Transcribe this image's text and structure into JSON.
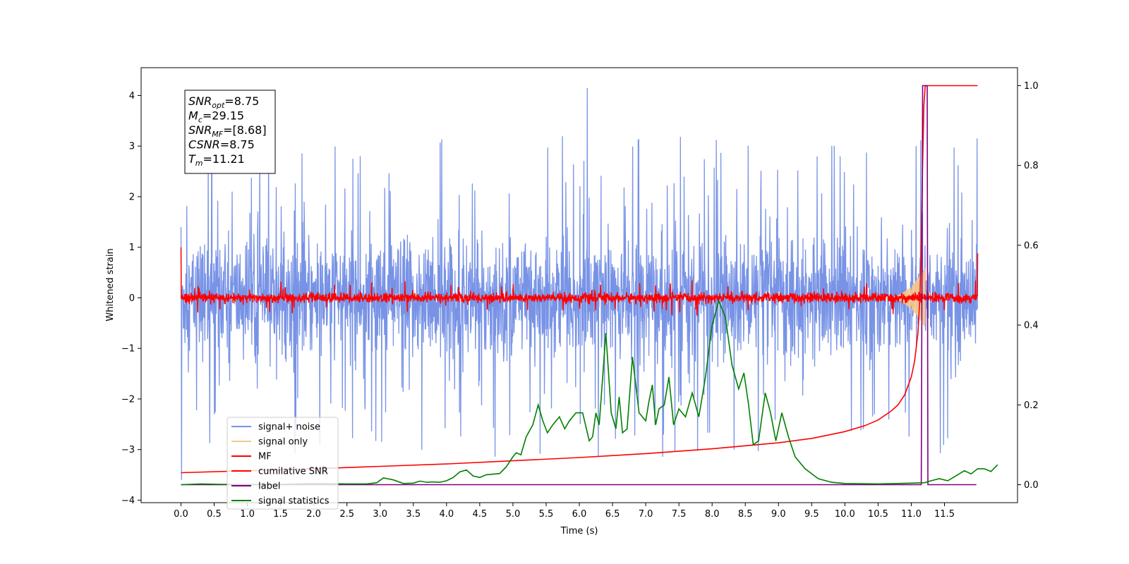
{
  "chart_data": {
    "type": "line",
    "xlabel": "Time (s)",
    "ylabel": "Whitened strain",
    "ylabel_right": "",
    "xlim": [
      -0.6,
      12.6
    ],
    "ylim": [
      -4.05,
      4.55
    ],
    "ylim_right": [
      -0.045,
      1.045
    ],
    "x_ticks": [
      "0.0",
      "0.5",
      "1.0",
      "1.5",
      "2.0",
      "2.5",
      "3.0",
      "3.5",
      "4.0",
      "4.5",
      "5.0",
      "5.5",
      "6.0",
      "6.5",
      "7.0",
      "7.5",
      "8.0",
      "8.5",
      "9.0",
      "9.5",
      "10.0",
      "10.5",
      "11.0",
      "11.5"
    ],
    "y_ticks": [
      "−4",
      "−3",
      "−2",
      "−1",
      "0",
      "1",
      "2",
      "3",
      "4"
    ],
    "y_ticks_right": [
      "0.0",
      "0.2",
      "0.4",
      "0.6",
      "0.8",
      "1.0"
    ],
    "grid": false,
    "legend_position": "lower-left",
    "info_box": {
      "lines": [
        {
          "base": "SNR",
          "sub": "opt",
          "value": "=8.75"
        },
        {
          "base": "M",
          "sub": "c",
          "value": "=29.15"
        },
        {
          "base": "SNR",
          "sub": "MF",
          "value": "=[8.68]"
        },
        {
          "base": "CSNR",
          "sub": "",
          "value": "=8.75"
        },
        {
          "base": "T",
          "sub": "m",
          "value": "=11.21"
        }
      ]
    },
    "series": [
      {
        "name": "signal+ noise",
        "color": "#7893e6",
        "axis": "left",
        "description_envelope": {
          "x_start": 0.0,
          "x_end": 12.0,
          "spread": 0.75,
          "peak_max": 4.15,
          "peak_min": -3.62
        }
      },
      {
        "name": "signal only",
        "color": "#f5c98a",
        "axis": "left",
        "chirp": {
          "x_start": 10.6,
          "x_end": 11.21,
          "max_amp": 0.6
        }
      },
      {
        "name": "MF",
        "color": "#ff0000",
        "axis": "left",
        "noise_band": {
          "x_start": 0.0,
          "x_end": 12.0,
          "spread": 0.09,
          "start_value": 1.0,
          "end_value": 0.88
        }
      },
      {
        "name": "cumilative SNR",
        "color": "#ff0000",
        "axis": "right",
        "points": [
          [
            0.0,
            0.03
          ],
          [
            1.0,
            0.035
          ],
          [
            2.0,
            0.04
          ],
          [
            3.0,
            0.046
          ],
          [
            4.0,
            0.052
          ],
          [
            5.0,
            0.06
          ],
          [
            6.0,
            0.068
          ],
          [
            7.0,
            0.078
          ],
          [
            8.0,
            0.09
          ],
          [
            9.0,
            0.105
          ],
          [
            9.5,
            0.116
          ],
          [
            10.0,
            0.133
          ],
          [
            10.3,
            0.148
          ],
          [
            10.5,
            0.162
          ],
          [
            10.7,
            0.185
          ],
          [
            10.8,
            0.2
          ],
          [
            10.9,
            0.225
          ],
          [
            11.0,
            0.27
          ],
          [
            11.05,
            0.31
          ],
          [
            11.1,
            0.38
          ],
          [
            11.13,
            0.47
          ],
          [
            11.15,
            0.6
          ],
          [
            11.17,
            0.8
          ],
          [
            11.19,
            0.95
          ],
          [
            11.21,
            1.0
          ],
          [
            12.0,
            1.0
          ]
        ]
      },
      {
        "name": "label",
        "color": "#800080",
        "axis": "right",
        "points": [
          [
            0.0,
            0.0
          ],
          [
            11.15,
            0.0
          ],
          [
            11.17,
            1.0
          ],
          [
            11.24,
            1.0
          ],
          [
            11.25,
            0.0
          ],
          [
            11.98,
            0.0
          ]
        ]
      },
      {
        "name": "signal statistics",
        "color": "#008000",
        "axis": "right",
        "points": [
          [
            0.0,
            0.0
          ],
          [
            0.3,
            0.002
          ],
          [
            0.6,
            0.001
          ],
          [
            1.0,
            0.001
          ],
          [
            1.5,
            0.001
          ],
          [
            2.0,
            0.003
          ],
          [
            2.5,
            0.002
          ],
          [
            2.8,
            0.002
          ],
          [
            2.95,
            0.005
          ],
          [
            3.05,
            0.017
          ],
          [
            3.2,
            0.012
          ],
          [
            3.35,
            0.003
          ],
          [
            3.5,
            0.004
          ],
          [
            3.6,
            0.009
          ],
          [
            3.7,
            0.006
          ],
          [
            3.8,
            0.007
          ],
          [
            3.9,
            0.006
          ],
          [
            4.0,
            0.01
          ],
          [
            4.1,
            0.018
          ],
          [
            4.2,
            0.032
          ],
          [
            4.3,
            0.037
          ],
          [
            4.4,
            0.022
          ],
          [
            4.5,
            0.018
          ],
          [
            4.6,
            0.025
          ],
          [
            4.8,
            0.028
          ],
          [
            4.9,
            0.045
          ],
          [
            5.0,
            0.07
          ],
          [
            5.05,
            0.08
          ],
          [
            5.12,
            0.075
          ],
          [
            5.2,
            0.12
          ],
          [
            5.3,
            0.15
          ],
          [
            5.38,
            0.2
          ],
          [
            5.45,
            0.16
          ],
          [
            5.52,
            0.13
          ],
          [
            5.6,
            0.15
          ],
          [
            5.7,
            0.17
          ],
          [
            5.78,
            0.14
          ],
          [
            5.85,
            0.16
          ],
          [
            5.95,
            0.18
          ],
          [
            6.05,
            0.18
          ],
          [
            6.15,
            0.11
          ],
          [
            6.2,
            0.12
          ],
          [
            6.25,
            0.18
          ],
          [
            6.3,
            0.15
          ],
          [
            6.4,
            0.38
          ],
          [
            6.48,
            0.18
          ],
          [
            6.55,
            0.14
          ],
          [
            6.6,
            0.22
          ],
          [
            6.65,
            0.13
          ],
          [
            6.72,
            0.14
          ],
          [
            6.8,
            0.32
          ],
          [
            6.9,
            0.18
          ],
          [
            7.0,
            0.16
          ],
          [
            7.05,
            0.21
          ],
          [
            7.1,
            0.25
          ],
          [
            7.15,
            0.15
          ],
          [
            7.2,
            0.19
          ],
          [
            7.28,
            0.2
          ],
          [
            7.35,
            0.27
          ],
          [
            7.42,
            0.15
          ],
          [
            7.5,
            0.19
          ],
          [
            7.6,
            0.17
          ],
          [
            7.7,
            0.23
          ],
          [
            7.8,
            0.17
          ],
          [
            7.9,
            0.27
          ],
          [
            8.0,
            0.4
          ],
          [
            8.1,
            0.46
          ],
          [
            8.2,
            0.42
          ],
          [
            8.3,
            0.3
          ],
          [
            8.4,
            0.24
          ],
          [
            8.48,
            0.28
          ],
          [
            8.55,
            0.2
          ],
          [
            8.62,
            0.1
          ],
          [
            8.7,
            0.11
          ],
          [
            8.8,
            0.23
          ],
          [
            8.88,
            0.18
          ],
          [
            8.96,
            0.11
          ],
          [
            9.05,
            0.18
          ],
          [
            9.15,
            0.12
          ],
          [
            9.25,
            0.07
          ],
          [
            9.4,
            0.04
          ],
          [
            9.6,
            0.015
          ],
          [
            9.8,
            0.006
          ],
          [
            10.0,
            0.003
          ],
          [
            10.5,
            0.002
          ],
          [
            11.0,
            0.004
          ],
          [
            11.2,
            0.005
          ],
          [
            11.3,
            0.01
          ],
          [
            11.42,
            0.015
          ],
          [
            11.55,
            0.01
          ],
          [
            11.7,
            0.025
          ],
          [
            11.8,
            0.035
          ],
          [
            11.9,
            0.027
          ],
          [
            12.0,
            0.04
          ],
          [
            12.1,
            0.04
          ],
          [
            12.2,
            0.033
          ],
          [
            12.3,
            0.05
          ]
        ]
      }
    ]
  }
}
